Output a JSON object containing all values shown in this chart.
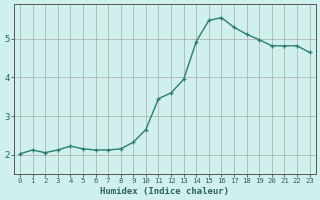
{
  "x": [
    0,
    1,
    2,
    3,
    4,
    5,
    6,
    7,
    8,
    9,
    10,
    11,
    12,
    13,
    14,
    15,
    16,
    17,
    18,
    19,
    20,
    21,
    22,
    23
  ],
  "y": [
    2.02,
    2.12,
    2.05,
    2.12,
    2.22,
    2.15,
    2.12,
    2.12,
    2.15,
    2.32,
    2.65,
    3.45,
    3.6,
    3.95,
    4.93,
    5.48,
    5.55,
    5.3,
    5.12,
    4.98,
    4.82,
    4.82,
    4.82,
    4.65
  ],
  "xlabel": "Humidex (Indice chaleur)",
  "ylabel": "",
  "line_color": "#2e7d6e",
  "bg_color": "#cff0ec",
  "grid_color": "#aaaaaa",
  "axis_color": "#555555",
  "tick_label_color": "#2e6060",
  "xlabel_color": "#2e6060",
  "ylim": [
    1.5,
    5.9
  ],
  "xlim": [
    -0.5,
    23.5
  ],
  "yticks": [
    2,
    3,
    4,
    5
  ],
  "xticks": [
    0,
    1,
    2,
    3,
    4,
    5,
    6,
    7,
    8,
    9,
    10,
    11,
    12,
    13,
    14,
    15,
    16,
    17,
    18,
    19,
    20,
    21,
    22,
    23
  ],
  "xtick_labels": [
    "0",
    "1",
    "2",
    "3",
    "4",
    "5",
    "6",
    "7",
    "8",
    "9",
    "10",
    "11",
    "12",
    "13",
    "14",
    "15",
    "16",
    "17",
    "18",
    "19",
    "20",
    "21",
    "22",
    "23"
  ]
}
